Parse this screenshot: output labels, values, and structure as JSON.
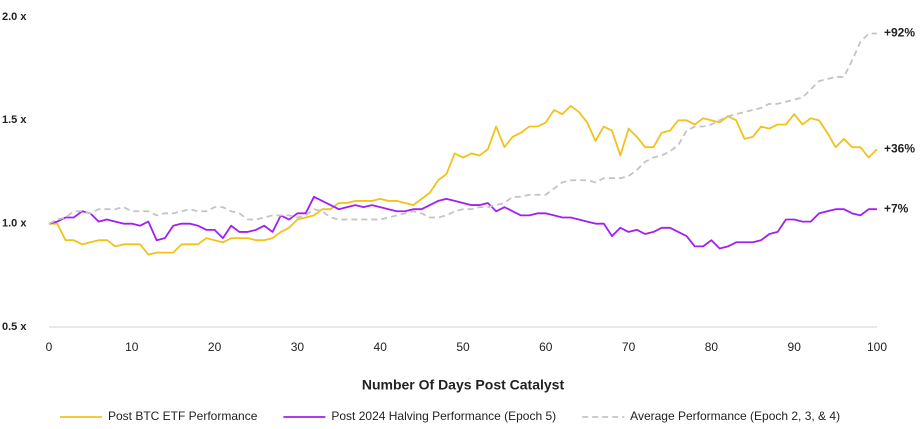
{
  "chart_data": {
    "type": "line",
    "x_label": "Number Of Days Post Catalyst",
    "x": [
      0,
      1,
      2,
      3,
      4,
      5,
      6,
      7,
      8,
      9,
      10,
      11,
      12,
      13,
      14,
      15,
      16,
      17,
      18,
      19,
      20,
      21,
      22,
      23,
      24,
      25,
      26,
      27,
      28,
      29,
      30,
      31,
      32,
      33,
      34,
      35,
      36,
      37,
      38,
      39,
      40,
      41,
      42,
      43,
      44,
      45,
      46,
      47,
      48,
      49,
      50,
      51,
      52,
      53,
      54,
      55,
      56,
      57,
      58,
      59,
      60,
      61,
      62,
      63,
      64,
      65,
      66,
      67,
      68,
      69,
      70,
      71,
      72,
      73,
      74,
      75,
      76,
      77,
      78,
      79,
      80,
      81,
      82,
      83,
      84,
      85,
      86,
      87,
      88,
      89,
      90,
      91,
      92,
      93,
      94,
      95,
      96,
      97,
      98,
      99,
      100
    ],
    "xlim": [
      0,
      100
    ],
    "xticks": [
      0,
      10,
      20,
      30,
      40,
      50,
      60,
      70,
      80,
      90,
      100
    ],
    "ylim": [
      0.5,
      2.0
    ],
    "yticks": [
      {
        "value": 0.5,
        "label": "0.5 x"
      },
      {
        "value": 1.0,
        "label": "1.0 x"
      },
      {
        "value": 1.5,
        "label": "1.5 x"
      },
      {
        "value": 2.0,
        "label": "2.0 x"
      }
    ],
    "grid": false,
    "legend": "bottom",
    "series": [
      {
        "name": "Post BTC ETF Performance",
        "color": "#f2c21b",
        "dashed": false,
        "end_label": "+36%",
        "values": [
          1.0,
          1.0,
          0.92,
          0.92,
          0.9,
          0.91,
          0.92,
          0.92,
          0.89,
          0.9,
          0.9,
          0.9,
          0.85,
          0.86,
          0.86,
          0.86,
          0.9,
          0.9,
          0.9,
          0.93,
          0.92,
          0.91,
          0.93,
          0.93,
          0.93,
          0.92,
          0.92,
          0.93,
          0.96,
          0.98,
          1.02,
          1.03,
          1.04,
          1.07,
          1.07,
          1.1,
          1.1,
          1.11,
          1.11,
          1.11,
          1.12,
          1.11,
          1.11,
          1.1,
          1.09,
          1.12,
          1.15,
          1.21,
          1.24,
          1.34,
          1.32,
          1.34,
          1.33,
          1.36,
          1.47,
          1.37,
          1.42,
          1.44,
          1.47,
          1.47,
          1.49,
          1.55,
          1.53,
          1.57,
          1.54,
          1.49,
          1.4,
          1.47,
          1.45,
          1.33,
          1.46,
          1.42,
          1.37,
          1.37,
          1.44,
          1.45,
          1.5,
          1.5,
          1.48,
          1.51,
          1.5,
          1.49,
          1.52,
          1.5,
          1.41,
          1.42,
          1.47,
          1.46,
          1.48,
          1.48,
          1.53,
          1.48,
          1.51,
          1.5,
          1.44,
          1.37,
          1.41,
          1.37,
          1.37,
          1.32,
          1.36
        ]
      },
      {
        "name": "Post 2024 Halving Performance (Epoch 5)",
        "color": "#a020f0",
        "dashed": false,
        "end_label": "+7%",
        "values": [
          1.0,
          1.01,
          1.03,
          1.03,
          1.06,
          1.05,
          1.01,
          1.02,
          1.01,
          1.0,
          1.0,
          0.99,
          1.01,
          0.92,
          0.93,
          0.99,
          1.0,
          1.0,
          0.99,
          0.97,
          0.97,
          0.93,
          0.99,
          0.96,
          0.96,
          0.97,
          0.99,
          0.96,
          1.04,
          1.02,
          1.05,
          1.05,
          1.13,
          1.11,
          1.09,
          1.07,
          1.08,
          1.09,
          1.08,
          1.09,
          1.08,
          1.07,
          1.06,
          1.06,
          1.07,
          1.07,
          1.09,
          1.11,
          1.12,
          1.11,
          1.1,
          1.09,
          1.09,
          1.1,
          1.06,
          1.08,
          1.06,
          1.04,
          1.04,
          1.05,
          1.05,
          1.04,
          1.03,
          1.03,
          1.02,
          1.01,
          1.0,
          1.0,
          0.94,
          0.98,
          0.96,
          0.97,
          0.95,
          0.96,
          0.98,
          0.98,
          0.96,
          0.94,
          0.89,
          0.89,
          0.92,
          0.88,
          0.89,
          0.91,
          0.91,
          0.91,
          0.92,
          0.95,
          0.96,
          1.02,
          1.02,
          1.01,
          1.01,
          1.05,
          1.06,
          1.07,
          1.07,
          1.05,
          1.04,
          1.07,
          1.07
        ]
      },
      {
        "name": "Average Performance (Epoch 2, 3, & 4)",
        "color": "#c4c4c4",
        "dashed": true,
        "end_label": "+92%",
        "values": [
          1.0,
          1.02,
          1.03,
          1.06,
          1.06,
          1.05,
          1.07,
          1.07,
          1.07,
          1.08,
          1.06,
          1.06,
          1.06,
          1.04,
          1.05,
          1.05,
          1.06,
          1.07,
          1.06,
          1.06,
          1.08,
          1.08,
          1.06,
          1.05,
          1.02,
          1.02,
          1.03,
          1.04,
          1.04,
          1.04,
          1.03,
          1.04,
          1.07,
          1.06,
          1.03,
          1.02,
          1.02,
          1.02,
          1.02,
          1.02,
          1.02,
          1.03,
          1.04,
          1.05,
          1.06,
          1.05,
          1.03,
          1.03,
          1.04,
          1.06,
          1.07,
          1.07,
          1.08,
          1.08,
          1.09,
          1.1,
          1.13,
          1.13,
          1.14,
          1.14,
          1.14,
          1.17,
          1.2,
          1.21,
          1.21,
          1.21,
          1.2,
          1.22,
          1.22,
          1.22,
          1.23,
          1.26,
          1.3,
          1.32,
          1.33,
          1.35,
          1.38,
          1.45,
          1.47,
          1.47,
          1.48,
          1.5,
          1.52,
          1.53,
          1.54,
          1.55,
          1.56,
          1.58,
          1.58,
          1.59,
          1.6,
          1.61,
          1.65,
          1.69,
          1.7,
          1.71,
          1.71,
          1.79,
          1.88,
          1.92,
          1.92
        ]
      }
    ]
  }
}
